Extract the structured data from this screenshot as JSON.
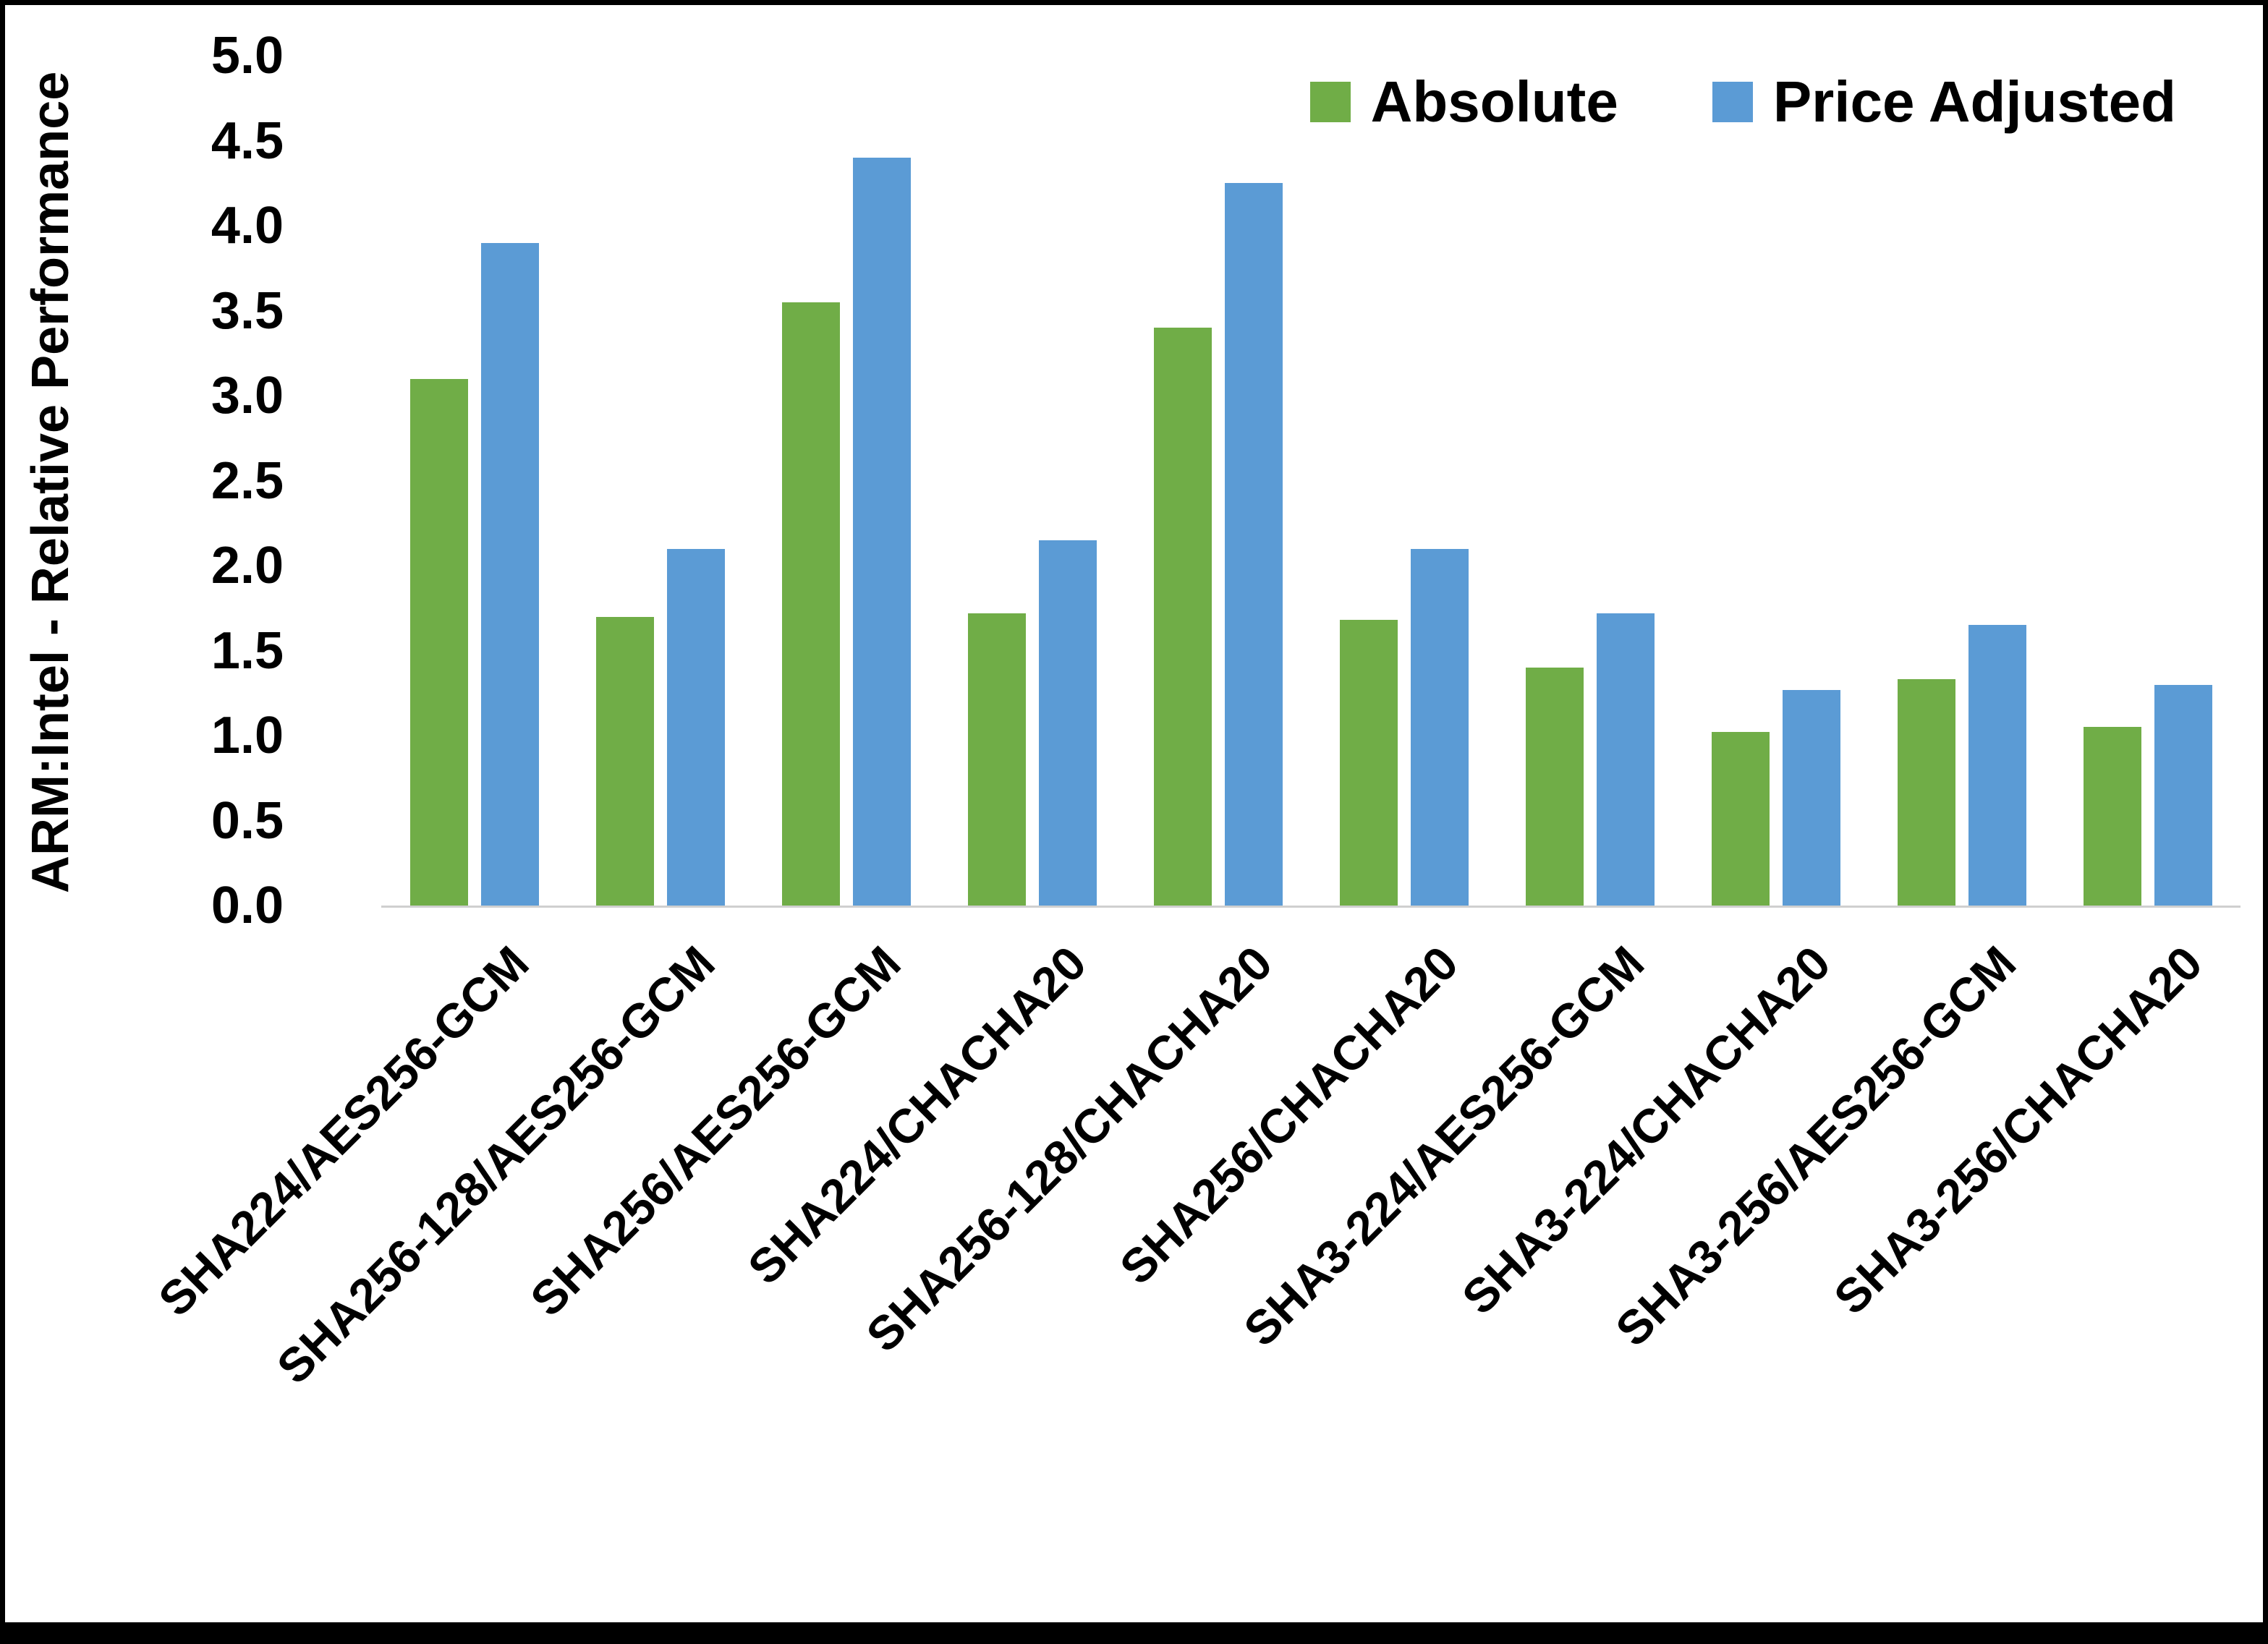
{
  "chart_data": {
    "type": "bar",
    "title": "",
    "xlabel": "",
    "ylabel": "ARM:Intel - Relative Performance",
    "ylim": [
      0,
      5
    ],
    "ytick_step": 0.5,
    "yticks": [
      "0.0",
      "0.5",
      "1.0",
      "1.5",
      "2.0",
      "2.5",
      "3.0",
      "3.5",
      "4.0",
      "4.5",
      "5.0"
    ],
    "grid": false,
    "legend_position": "top-right",
    "categories": [
      "SHA224/AES256-GCM",
      "SHA256-128/AES256-GCM",
      "SHA256/AES256-GCM",
      "SHA224/CHACHA20",
      "SHA256-128/CHACHA20",
      "SHA256/CHACHA20",
      "SHA3-224/AES256-GCM",
      "SHA3-224/CHACHA20",
      "SHA3-256/AES256-GCM",
      "SHA3-256/CHACHA20"
    ],
    "series": [
      {
        "name": "Absolute",
        "color": "#70AD47",
        "values": [
          3.1,
          1.7,
          3.55,
          1.72,
          3.4,
          1.68,
          1.4,
          1.02,
          1.33,
          1.05
        ]
      },
      {
        "name": "Price Adjusted",
        "color": "#5B9BD5",
        "values": [
          3.9,
          2.1,
          4.4,
          2.15,
          4.25,
          2.1,
          1.72,
          1.27,
          1.65,
          1.3
        ]
      }
    ]
  },
  "colors": {
    "axis_line": "#cfcfcf",
    "frame_border": "#000000"
  }
}
